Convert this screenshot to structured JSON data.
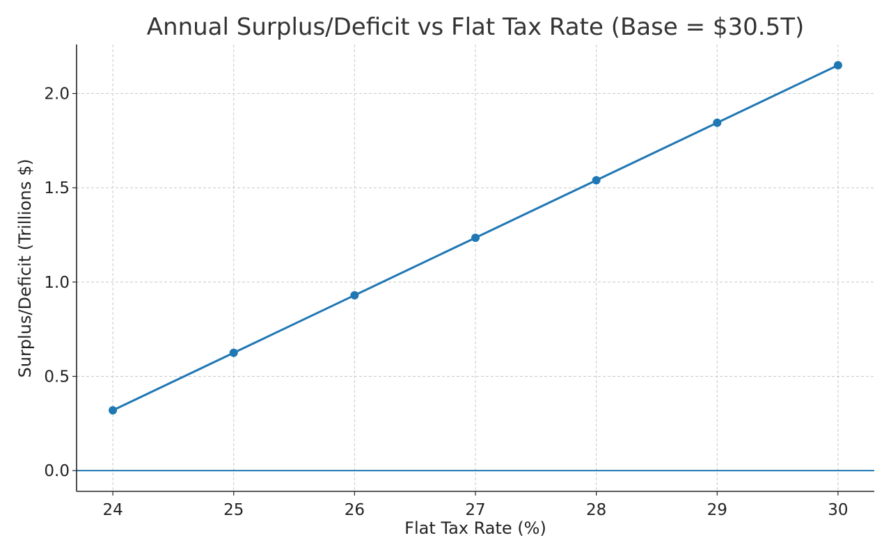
{
  "chart_data": {
    "type": "line",
    "title": "Annual Surplus/Deficit vs Flat Tax Rate (Base = $30.5T)",
    "xlabel": "Flat Tax Rate (%)",
    "ylabel": "Surplus/Deficit (Trillions $)",
    "x": [
      24,
      25,
      26,
      27,
      28,
      29,
      30
    ],
    "series": [
      {
        "values": [
          0.32,
          0.625,
          0.93,
          1.235,
          1.54,
          1.845,
          2.15
        ],
        "color": "#1f77b4",
        "marker": "circle"
      }
    ],
    "reference_line": {
      "y": 0,
      "color": "#1f77b4"
    },
    "xlim": [
      23.7,
      30.3
    ],
    "ylim": [
      -0.11,
      2.26
    ],
    "xticks": [
      24,
      25,
      26,
      27,
      28,
      29,
      30
    ],
    "yticks": [
      0.0,
      0.5,
      1.0,
      1.5,
      2.0
    ],
    "ytick_labels": [
      "0.0",
      "0.5",
      "1.0",
      "1.5",
      "2.0"
    ],
    "grid": true,
    "legend": "none"
  }
}
